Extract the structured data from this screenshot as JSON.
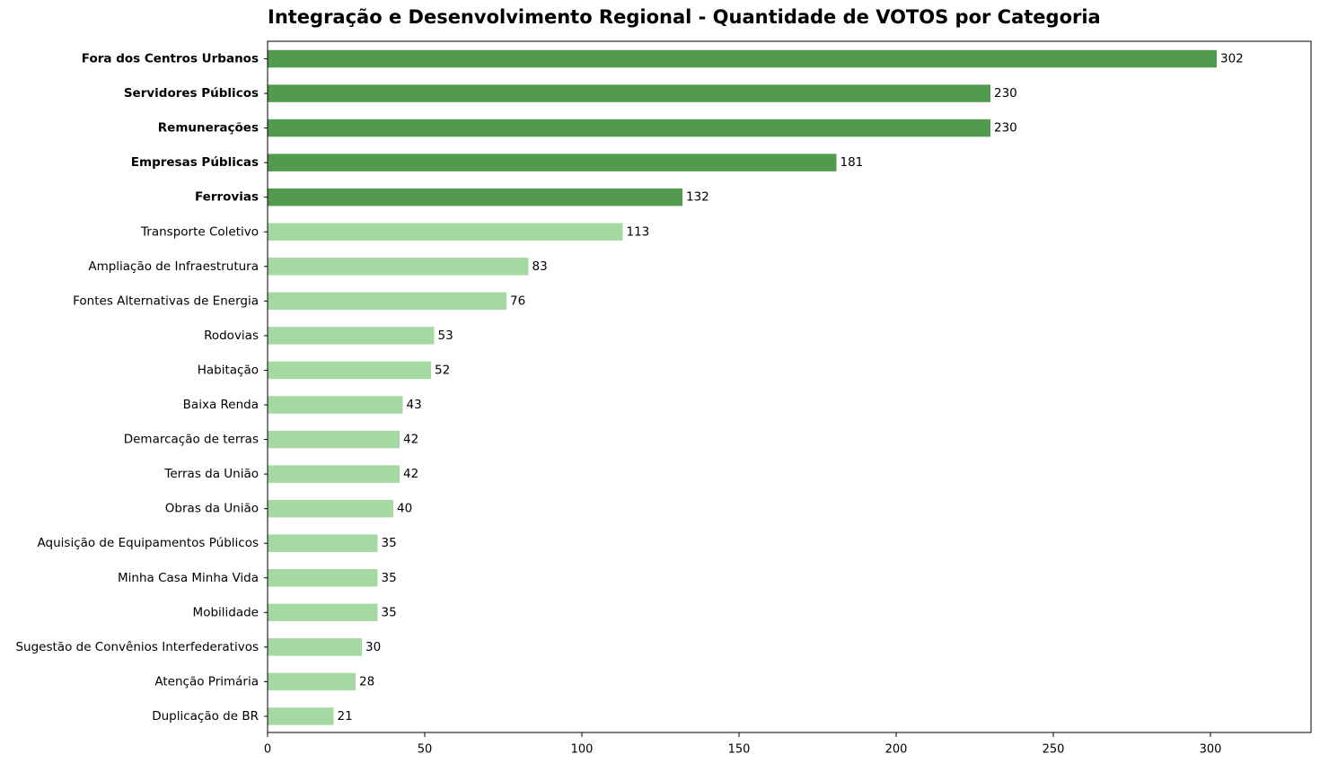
{
  "chart_data": {
    "type": "bar",
    "orientation": "horizontal",
    "title": "Integração e Desenvolvimento Regional - Quantidade de VOTOS por Categoria",
    "xlabel": "",
    "ylabel": "",
    "xlim": [
      0,
      332
    ],
    "xticks": [
      0,
      50,
      100,
      150,
      200,
      250,
      300
    ],
    "grid": false,
    "highlight_top_n": 5,
    "colors": {
      "highlight": "#529a4e",
      "normal": "#a4d9a1",
      "axis": "#000000",
      "text": "#000000"
    },
    "categories": [
      "Fora dos Centros Urbanos",
      "Servidores Públicos",
      "Remunerações",
      "Empresas Públicas",
      "Ferrovias",
      "Transporte Coletivo",
      "Ampliação de Infraestrutura",
      "Fontes Alternativas de Energia",
      "Rodovias",
      "Habitação",
      "Baixa Renda",
      "Demarcação de terras",
      "Terras da União",
      "Obras da União",
      "Aquisição de Equipamentos Públicos",
      "Minha Casa Minha Vida",
      "Mobilidade",
      "Sugestão de Convênios Interfederativos",
      "Atenção Primária",
      "Duplicação de BR"
    ],
    "values": [
      302,
      230,
      230,
      181,
      132,
      113,
      83,
      76,
      53,
      52,
      43,
      42,
      42,
      40,
      35,
      35,
      35,
      30,
      28,
      21
    ]
  }
}
